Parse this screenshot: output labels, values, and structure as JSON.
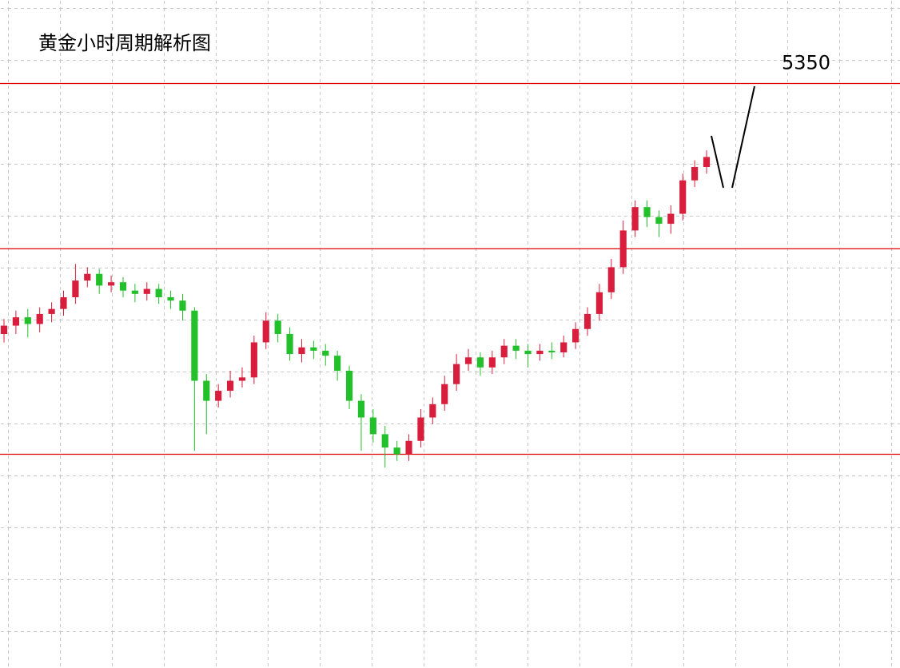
{
  "chart_data": {
    "type": "candlestick",
    "title": "黄金小时周期解析图",
    "ylim": [
      5000,
      5400
    ],
    "levels": [
      5350,
      5251,
      5128
    ],
    "level_color": "#e00000",
    "up_color": "#d81e3c",
    "down_color": "#22c02a",
    "open": [
      5200,
      5205,
      5210,
      5206,
      5212,
      5215,
      5222,
      5232,
      5236,
      5229,
      5231,
      5226,
      5224,
      5227,
      5222,
      5220,
      5214,
      5172,
      5160,
      5166,
      5172,
      5174,
      5195,
      5208,
      5200,
      5188,
      5192,
      5190,
      5187,
      5178,
      5160,
      5150,
      5140,
      5132,
      5128,
      5136,
      5150,
      5158,
      5170,
      5182,
      5186,
      5180,
      5186,
      5193,
      5190,
      5188,
      5190,
      5189,
      5195,
      5203,
      5212,
      5225,
      5240,
      5262,
      5276,
      5270,
      5266,
      5272,
      5292,
      5300
    ],
    "high": [
      5209,
      5214,
      5215,
      5216,
      5219,
      5226,
      5242,
      5240,
      5239,
      5235,
      5234,
      5230,
      5231,
      5230,
      5226,
      5224,
      5216,
      5176,
      5170,
      5178,
      5180,
      5199,
      5213,
      5212,
      5204,
      5197,
      5196,
      5194,
      5190,
      5181,
      5164,
      5155,
      5145,
      5136,
      5140,
      5155,
      5162,
      5175,
      5188,
      5191,
      5189,
      5190,
      5197,
      5197,
      5194,
      5194,
      5195,
      5199,
      5207,
      5216,
      5230,
      5245,
      5268,
      5280,
      5280,
      5274,
      5277,
      5296,
      5304,
      5310
    ],
    "low": [
      5195,
      5200,
      5198,
      5201,
      5207,
      5211,
      5218,
      5228,
      5224,
      5225,
      5222,
      5219,
      5220,
      5218,
      5215,
      5208,
      5130,
      5140,
      5156,
      5162,
      5168,
      5170,
      5191,
      5195,
      5184,
      5183,
      5185,
      5181,
      5172,
      5155,
      5130,
      5135,
      5120,
      5124,
      5124,
      5132,
      5146,
      5154,
      5166,
      5178,
      5175,
      5176,
      5182,
      5185,
      5180,
      5184,
      5185,
      5186,
      5191,
      5199,
      5208,
      5221,
      5236,
      5258,
      5264,
      5258,
      5260,
      5268,
      5288,
      5296
    ],
    "close": [
      5205,
      5210,
      5206,
      5212,
      5215,
      5222,
      5232,
      5236,
      5229,
      5231,
      5226,
      5224,
      5227,
      5222,
      5220,
      5214,
      5172,
      5160,
      5166,
      5172,
      5174,
      5195,
      5208,
      5200,
      5188,
      5192,
      5190,
      5187,
      5178,
      5160,
      5150,
      5140,
      5132,
      5128,
      5136,
      5150,
      5158,
      5170,
      5182,
      5186,
      5180,
      5186,
      5193,
      5190,
      5188,
      5190,
      5189,
      5195,
      5203,
      5212,
      5225,
      5240,
      5262,
      5276,
      5270,
      5266,
      5272,
      5292,
      5300,
      5306
    ]
  }
}
